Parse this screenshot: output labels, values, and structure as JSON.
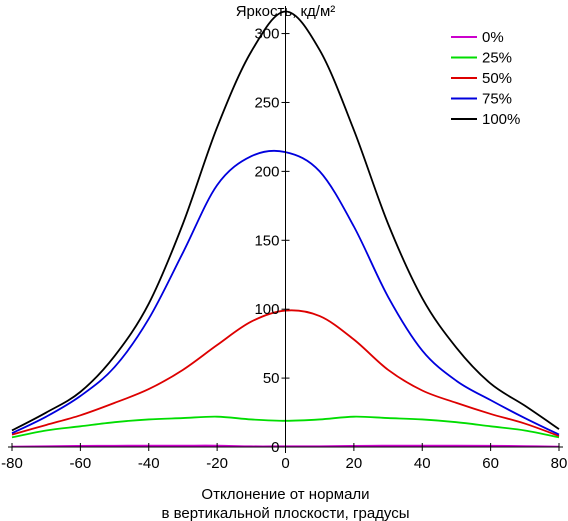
{
  "chart_data": {
    "type": "line",
    "title": "",
    "ylabel": "Яркость, кд/м²",
    "xlabel": [
      "Отклонение от нормали",
      "в вертикальной плоскости, градусы"
    ],
    "xlim": [
      -80,
      80
    ],
    "ylim": [
      0,
      320
    ],
    "xticks": [
      "-80",
      "-60",
      "-40",
      "-20",
      "0",
      "20",
      "40",
      "60",
      "80"
    ],
    "xtick_values": [
      -80,
      -60,
      -40,
      -20,
      0,
      20,
      40,
      60,
      80
    ],
    "yticks": [
      "0",
      "50",
      "100",
      "150",
      "200",
      "250",
      "300"
    ],
    "ytick_values": [
      0,
      50,
      100,
      150,
      200,
      250,
      300
    ],
    "grid": false,
    "legend_position": "top-right",
    "x": [
      -80,
      -70,
      -60,
      -50,
      -40,
      -30,
      -20,
      -10,
      0,
      10,
      20,
      30,
      40,
      50,
      60,
      70,
      80
    ],
    "series": [
      {
        "name": "0%",
        "color": "#cc00cc",
        "values": [
          0.3,
          0.5,
          0.8,
          0.9,
          1.0,
          1.0,
          1.0,
          0.5,
          0.5,
          0.5,
          0.8,
          1.0,
          1.0,
          1.0,
          0.9,
          0.6,
          0.3
        ]
      },
      {
        "name": "25%",
        "color": "#00dd00",
        "values": [
          7,
          12,
          15,
          18,
          20,
          21,
          22,
          20,
          19,
          20,
          22,
          21,
          20,
          18,
          15,
          12,
          7
        ]
      },
      {
        "name": "50%",
        "color": "#dd0000",
        "values": [
          9,
          16,
          23,
          32,
          42,
          56,
          74,
          91,
          99,
          95,
          78,
          56,
          41,
          32,
          24,
          17,
          8
        ]
      },
      {
        "name": "75%",
        "color": "#0000dd",
        "values": [
          10,
          22,
          37,
          58,
          93,
          141,
          190,
          211,
          214,
          200,
          160,
          109,
          70,
          48,
          34,
          21,
          9
        ]
      },
      {
        "name": "100%",
        "color": "#000000",
        "values": [
          12,
          25,
          40,
          66,
          104,
          162,
          232,
          287,
          316,
          288,
          230,
          162,
          108,
          72,
          46,
          30,
          13
        ]
      }
    ]
  }
}
